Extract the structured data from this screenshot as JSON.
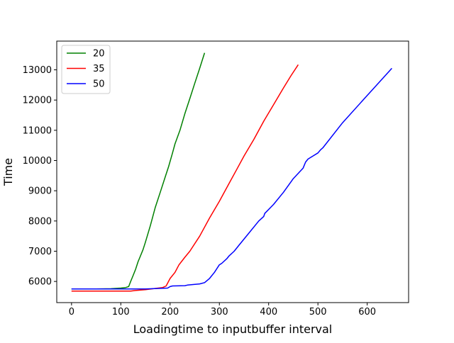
{
  "chart_data": {
    "type": "line",
    "xlabel": "Loadingtime to inputbuffer interval",
    "ylabel": "Time",
    "xlim": [
      -30,
      684
    ],
    "ylim": [
      5300,
      13950
    ],
    "xticks": [
      0,
      100,
      200,
      300,
      400,
      500,
      600
    ],
    "yticks": [
      6000,
      7000,
      8000,
      9000,
      10000,
      11000,
      12000,
      13000
    ],
    "grid": false,
    "legend_position": "top-left",
    "series": [
      {
        "name": "20",
        "color": "#008000",
        "x": [
          0,
          50,
          80,
          100,
          110,
          116,
          120,
          125,
          130,
          135,
          140,
          145,
          150,
          160,
          170,
          180,
          190,
          197,
          205,
          210,
          220,
          230,
          240,
          250,
          260,
          270
        ],
        "y": [
          5750,
          5750,
          5760,
          5780,
          5800,
          5830,
          6000,
          6200,
          6400,
          6650,
          6850,
          7050,
          7300,
          7850,
          8450,
          8950,
          9450,
          9800,
          10250,
          10550,
          11000,
          11550,
          12050,
          12550,
          13050,
          13560
        ]
      },
      {
        "name": "35",
        "color": "#ff0000",
        "x": [
          0,
          50,
          90,
          120,
          130,
          150,
          170,
          185,
          192,
          200,
          210,
          218,
          230,
          240,
          260,
          280,
          300,
          320,
          335,
          350,
          370,
          390,
          410,
          430,
          445,
          460
        ],
        "y": [
          5680,
          5680,
          5680,
          5680,
          5700,
          5730,
          5770,
          5800,
          5850,
          6100,
          6300,
          6550,
          6800,
          7000,
          7500,
          8100,
          8650,
          9250,
          9700,
          10150,
          10700,
          11300,
          11850,
          12400,
          12800,
          13170
        ]
      },
      {
        "name": "50",
        "color": "#0000ff",
        "x": [
          0,
          50,
          100,
          150,
          195,
          200,
          205,
          230,
          235,
          260,
          270,
          280,
          290,
          300,
          305,
          315,
          320,
          330,
          340,
          360,
          380,
          390,
          392,
          410,
          430,
          450,
          470,
          475,
          480,
          490,
          500,
          505,
          510,
          550,
          600,
          650
        ],
        "y": [
          5750,
          5750,
          5750,
          5750,
          5780,
          5830,
          5850,
          5860,
          5880,
          5920,
          5960,
          6100,
          6300,
          6550,
          6600,
          6750,
          6850,
          7000,
          7200,
          7600,
          8000,
          8150,
          8250,
          8550,
          8950,
          9400,
          9750,
          9950,
          10050,
          10150,
          10250,
          10350,
          10420,
          11250,
          12150,
          13050
        ]
      }
    ]
  }
}
